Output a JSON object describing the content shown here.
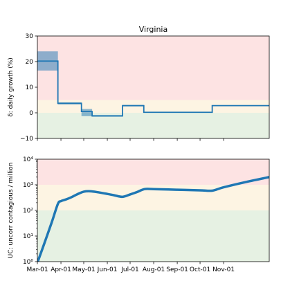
{
  "colors": {
    "line": "#1f77b4",
    "band": "#1f77b4",
    "zone_red": "#fde3e3",
    "zone_yellow": "#fdf4e3",
    "zone_green": "#e6f1e3"
  },
  "chart_data": [
    {
      "type": "line",
      "title": "Virginia",
      "ylabel": "δ: daily growth (%)",
      "xlim": [
        "2020-03-01",
        "2020-12-31"
      ],
      "ylim": [
        -10,
        30
      ],
      "yticks": [
        -10,
        0,
        10,
        20,
        30
      ],
      "ytick_labels": [
        "−10",
        "0",
        "10",
        "20",
        "30"
      ],
      "zones": [
        {
          "name": "red",
          "from": 5,
          "to": 30
        },
        {
          "name": "yellow",
          "from": 0,
          "to": 5
        },
        {
          "name": "green",
          "from": -10,
          "to": 0
        }
      ],
      "series": [
        {
          "segments": [
            {
              "start": "2020-03-01",
              "end": "2020-03-28",
              "value": 20.2,
              "lower": 16.5,
              "upper": 24.0
            },
            {
              "start": "2020-03-28",
              "end": "2020-04-28",
              "value": 3.7,
              "lower": 3.3,
              "upper": 4.1
            },
            {
              "start": "2020-04-28",
              "end": "2020-05-12",
              "value": 0.5,
              "lower": -1.3,
              "upper": 1.5
            },
            {
              "start": "2020-05-12",
              "end": "2020-06-21",
              "value": -1.2,
              "lower": -1.5,
              "upper": -0.9
            },
            {
              "start": "2020-06-21",
              "end": "2020-07-19",
              "value": 2.8,
              "lower": 2.5,
              "upper": 3.1
            },
            {
              "start": "2020-07-19",
              "end": "2020-10-17",
              "value": 0.2,
              "lower": 0.0,
              "upper": 0.4
            },
            {
              "start": "2020-10-17",
              "end": "2020-12-31",
              "value": 2.8,
              "lower": 2.6,
              "upper": 3.0
            }
          ]
        }
      ]
    },
    {
      "type": "line",
      "ylabel": "UC: uncorr contagious / million",
      "yscale": "log",
      "ylim": [
        1,
        10000
      ],
      "yticks": [
        1,
        10,
        100,
        1000,
        10000
      ],
      "ytick_labels": [
        "10⁰",
        "10¹",
        "10²",
        "10³",
        "10⁴"
      ],
      "xlim": [
        "2020-03-01",
        "2020-12-31"
      ],
      "xticks": [
        "2020-03-01",
        "2020-04-01",
        "2020-05-01",
        "2020-06-01",
        "2020-07-01",
        "2020-08-01",
        "2020-09-01",
        "2020-10-01",
        "2020-11-01"
      ],
      "xtick_labels": [
        "Mar-01",
        "Apr-01",
        "May-01",
        "Jun-01",
        "Jul-01",
        "Aug-01",
        "Sep-01",
        "Oct-01",
        "Nov-01"
      ],
      "zones": [
        {
          "name": "red",
          "from": 1000,
          "to": 10000
        },
        {
          "name": "yellow",
          "from": 100,
          "to": 1000
        },
        {
          "name": "green",
          "from": 1,
          "to": 100
        }
      ],
      "series": [
        {
          "x": [
            "2020-03-01",
            "2020-03-10",
            "2020-03-20",
            "2020-03-28",
            "2020-04-01",
            "2020-04-08",
            "2020-04-15",
            "2020-04-22",
            "2020-05-01",
            "2020-05-10",
            "2020-05-20",
            "2020-06-01",
            "2020-06-10",
            "2020-06-21",
            "2020-07-01",
            "2020-07-10",
            "2020-07-20",
            "2020-08-01",
            "2020-09-01",
            "2020-10-01",
            "2020-10-17",
            "2020-11-01",
            "2020-12-01",
            "2020-12-31"
          ],
          "y": [
            0.9,
            5,
            35,
            180,
            230,
            270,
            330,
            420,
            540,
            560,
            510,
            440,
            390,
            340,
            420,
            520,
            680,
            680,
            640,
            610,
            590,
            800,
            1300,
            2000
          ]
        }
      ]
    }
  ]
}
